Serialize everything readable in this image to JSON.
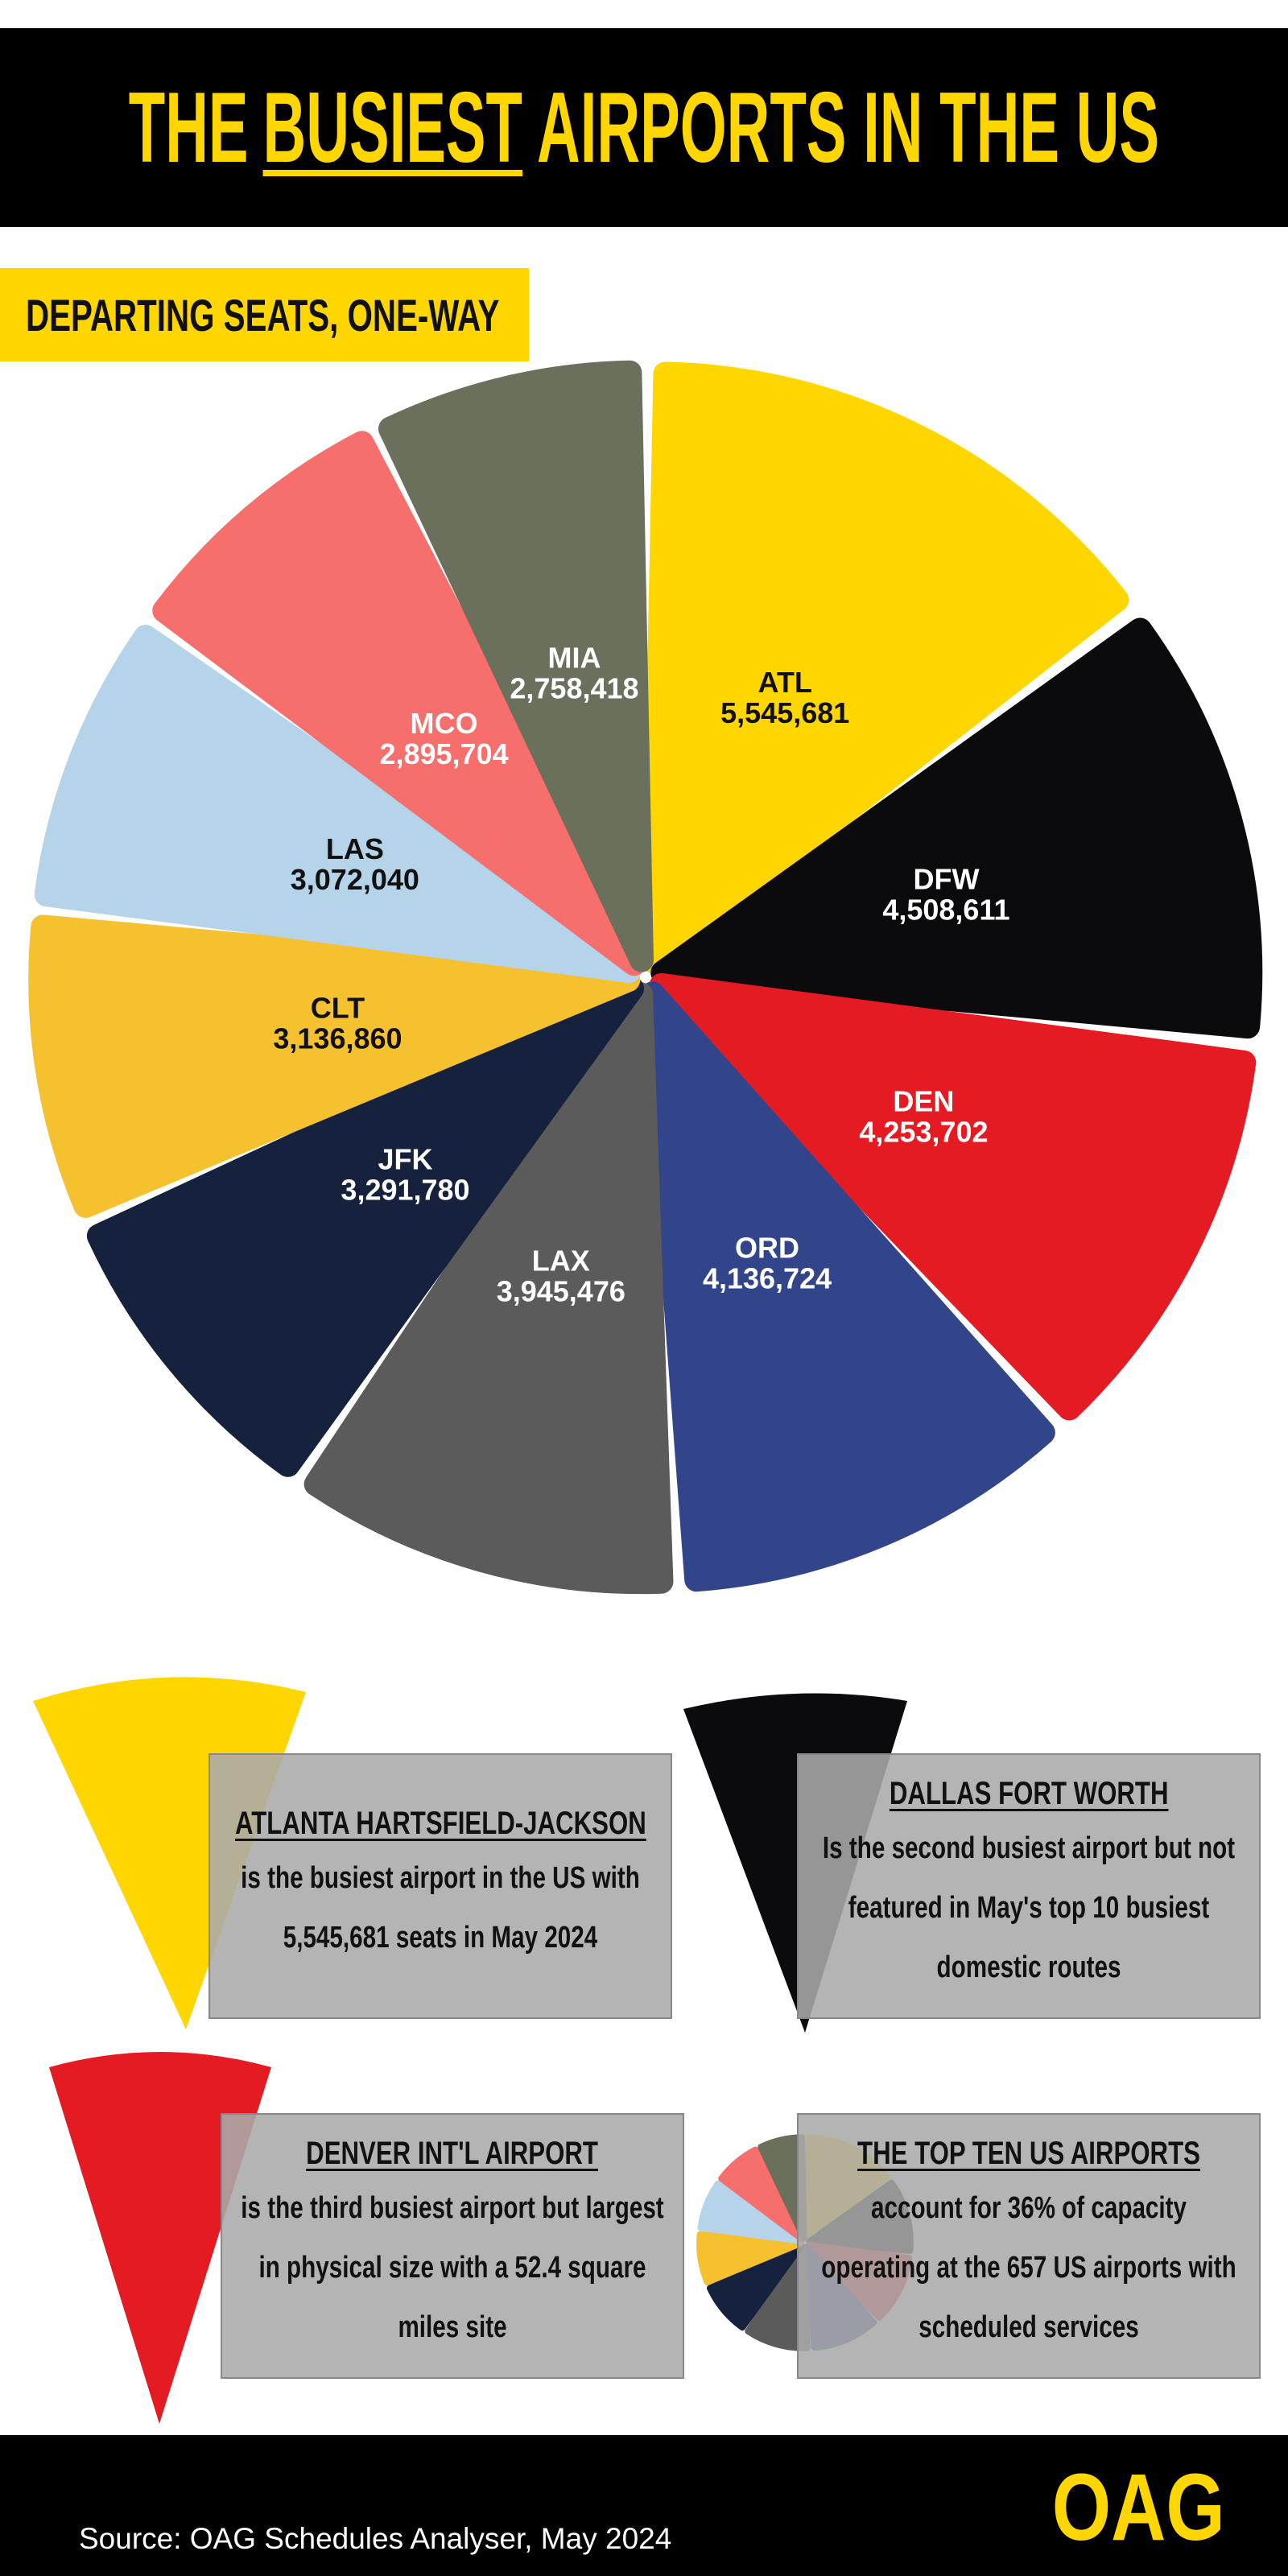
{
  "chart_data": {
    "type": "pie",
    "title_parts": [
      "THE",
      "BUSIEST",
      "AIRPORTS IN THE US"
    ],
    "subtitle": "DEPARTING SEATS, ONE-WAY",
    "categories": [
      "ATL",
      "DFW",
      "DEN",
      "ORD",
      "LAX",
      "JFK",
      "CLT",
      "LAS",
      "MCO",
      "MIA"
    ],
    "values": [
      5545681,
      4508611,
      4253702,
      4136724,
      3945476,
      3291780,
      3136860,
      3072040,
      2895704,
      2758418
    ],
    "value_labels": [
      "5,545,681",
      "4,508,611",
      "4,253,702",
      "4,136,724",
      "3,945,476",
      "3,291,780",
      "3,136,860",
      "3,072,040",
      "2,895,704",
      "2,758,418"
    ],
    "colors": [
      "#FFD600",
      "#0B0B0E",
      "#E41B22",
      "#33458A",
      "#5B5B5B",
      "#16213D",
      "#F6C12E",
      "#B5D3E9",
      "#F76F6C",
      "#6B705C"
    ]
  },
  "callouts": [
    {
      "title": "ATLANTA HARTSFIELD-JACKSON",
      "body": "is the busiest airport in the US with 5,545,681 seats in May 2024"
    },
    {
      "title": "DALLAS FORT WORTH",
      "body": "Is the second busiest airport but not featured in May's top 10 busiest domestic routes"
    },
    {
      "title": "DENVER INT'L AIRPORT",
      "body": "is the third busiest airport but largest in physical size with a 52.4 square miles site"
    },
    {
      "title": "THE TOP TEN US AIRPORTS",
      "body": "account for 36% of capacity operating at the 657 US airports with scheduled services"
    }
  ],
  "footer": {
    "source": "Source: OAG Schedules Analyser, May 2024",
    "logo": "OAG"
  }
}
